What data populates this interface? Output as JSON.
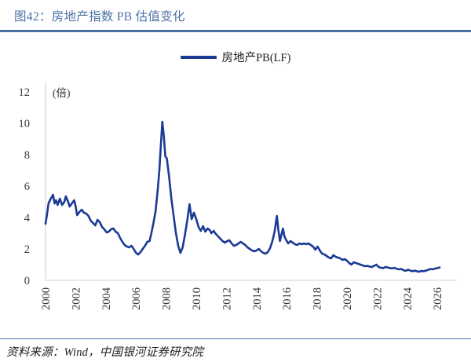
{
  "figure": {
    "title": "图42：房地产指数 PB 估值变化",
    "accent_color": "#4c70a6",
    "rule_color": "#4c70a0"
  },
  "legend": {
    "label": "房地产PB(LF)"
  },
  "footer": {
    "source": "资料来源：Wind，中国银河证券研究院",
    "rule_color": "#4a6da4"
  },
  "chart_data": {
    "type": "line",
    "title": "房地产指数 PB 估值变化",
    "unit_label": "(倍)",
    "xlabel": "",
    "ylabel": "PB (倍)",
    "ylim": [
      0,
      12
    ],
    "yticks": [
      0,
      2,
      4,
      6,
      8,
      10,
      12
    ],
    "xticks": [
      2000,
      2002,
      2004,
      2006,
      2008,
      2010,
      2012,
      2014,
      2016,
      2018,
      2020,
      2022,
      2024,
      2026
    ],
    "x_range": [
      2000,
      2027.3
    ],
    "grid": false,
    "legend_position": "top-center",
    "axis_color": "#d9d9d9",
    "series": [
      {
        "name": "房地产PB(LF)",
        "color": "#1a3a94",
        "points": [
          [
            2000.0,
            3.6
          ],
          [
            2000.1,
            4.2
          ],
          [
            2000.2,
            4.9
          ],
          [
            2000.35,
            5.2
          ],
          [
            2000.5,
            5.45
          ],
          [
            2000.6,
            4.9
          ],
          [
            2000.7,
            5.1
          ],
          [
            2000.8,
            4.8
          ],
          [
            2000.95,
            5.2
          ],
          [
            2001.1,
            4.8
          ],
          [
            2001.25,
            5.0
          ],
          [
            2001.35,
            5.35
          ],
          [
            2001.5,
            5.0
          ],
          [
            2001.6,
            4.7
          ],
          [
            2001.75,
            4.9
          ],
          [
            2001.9,
            5.1
          ],
          [
            2002.0,
            4.7
          ],
          [
            2002.1,
            4.15
          ],
          [
            2002.25,
            4.35
          ],
          [
            2002.4,
            4.5
          ],
          [
            2002.55,
            4.3
          ],
          [
            2002.7,
            4.25
          ],
          [
            2002.85,
            4.1
          ],
          [
            2003.0,
            3.8
          ],
          [
            2003.15,
            3.65
          ],
          [
            2003.3,
            3.5
          ],
          [
            2003.45,
            3.85
          ],
          [
            2003.6,
            3.7
          ],
          [
            2003.75,
            3.4
          ],
          [
            2003.9,
            3.25
          ],
          [
            2004.05,
            3.05
          ],
          [
            2004.2,
            3.1
          ],
          [
            2004.35,
            3.25
          ],
          [
            2004.5,
            3.3
          ],
          [
            2004.65,
            3.1
          ],
          [
            2004.8,
            3.0
          ],
          [
            2004.95,
            2.7
          ],
          [
            2005.1,
            2.45
          ],
          [
            2005.25,
            2.25
          ],
          [
            2005.4,
            2.15
          ],
          [
            2005.55,
            2.1
          ],
          [
            2005.7,
            2.2
          ],
          [
            2005.85,
            2.0
          ],
          [
            2006.0,
            1.75
          ],
          [
            2006.15,
            1.65
          ],
          [
            2006.3,
            1.8
          ],
          [
            2006.45,
            2.0
          ],
          [
            2006.6,
            2.2
          ],
          [
            2006.75,
            2.45
          ],
          [
            2006.9,
            2.5
          ],
          [
            2007.0,
            2.9
          ],
          [
            2007.15,
            3.6
          ],
          [
            2007.3,
            4.4
          ],
          [
            2007.45,
            5.8
          ],
          [
            2007.55,
            7.0
          ],
          [
            2007.65,
            8.6
          ],
          [
            2007.75,
            10.1
          ],
          [
            2007.85,
            9.2
          ],
          [
            2007.95,
            7.9
          ],
          [
            2008.05,
            7.75
          ],
          [
            2008.2,
            6.6
          ],
          [
            2008.35,
            5.2
          ],
          [
            2008.5,
            4.1
          ],
          [
            2008.65,
            3.0
          ],
          [
            2008.8,
            2.2
          ],
          [
            2008.95,
            1.75
          ],
          [
            2009.1,
            2.1
          ],
          [
            2009.25,
            2.9
          ],
          [
            2009.4,
            3.8
          ],
          [
            2009.55,
            4.85
          ],
          [
            2009.7,
            3.9
          ],
          [
            2009.85,
            4.3
          ],
          [
            2010.0,
            3.9
          ],
          [
            2010.15,
            3.4
          ],
          [
            2010.3,
            3.15
          ],
          [
            2010.45,
            3.45
          ],
          [
            2010.6,
            3.1
          ],
          [
            2010.75,
            3.3
          ],
          [
            2010.9,
            3.2
          ],
          [
            2011.0,
            3.0
          ],
          [
            2011.15,
            3.15
          ],
          [
            2011.3,
            2.95
          ],
          [
            2011.45,
            2.8
          ],
          [
            2011.6,
            2.65
          ],
          [
            2011.75,
            2.5
          ],
          [
            2011.9,
            2.4
          ],
          [
            2012.05,
            2.5
          ],
          [
            2012.2,
            2.55
          ],
          [
            2012.35,
            2.35
          ],
          [
            2012.5,
            2.2
          ],
          [
            2012.65,
            2.25
          ],
          [
            2012.8,
            2.35
          ],
          [
            2012.95,
            2.45
          ],
          [
            2013.1,
            2.35
          ],
          [
            2013.25,
            2.25
          ],
          [
            2013.4,
            2.1
          ],
          [
            2013.55,
            2.0
          ],
          [
            2013.7,
            1.9
          ],
          [
            2013.85,
            1.85
          ],
          [
            2014.0,
            1.9
          ],
          [
            2014.15,
            2.0
          ],
          [
            2014.3,
            1.85
          ],
          [
            2014.45,
            1.75
          ],
          [
            2014.6,
            1.7
          ],
          [
            2014.75,
            1.8
          ],
          [
            2014.9,
            2.05
          ],
          [
            2015.05,
            2.5
          ],
          [
            2015.2,
            3.1
          ],
          [
            2015.35,
            4.1
          ],
          [
            2015.45,
            3.2
          ],
          [
            2015.55,
            2.5
          ],
          [
            2015.65,
            2.9
          ],
          [
            2015.75,
            3.3
          ],
          [
            2015.85,
            2.8
          ],
          [
            2015.95,
            2.6
          ],
          [
            2016.1,
            2.35
          ],
          [
            2016.25,
            2.5
          ],
          [
            2016.4,
            2.4
          ],
          [
            2016.55,
            2.3
          ],
          [
            2016.7,
            2.25
          ],
          [
            2016.85,
            2.35
          ],
          [
            2017.0,
            2.3
          ],
          [
            2017.15,
            2.35
          ],
          [
            2017.3,
            2.3
          ],
          [
            2017.45,
            2.35
          ],
          [
            2017.6,
            2.25
          ],
          [
            2017.75,
            2.15
          ],
          [
            2017.9,
            1.95
          ],
          [
            2018.05,
            2.15
          ],
          [
            2018.2,
            1.9
          ],
          [
            2018.35,
            1.7
          ],
          [
            2018.5,
            1.65
          ],
          [
            2018.65,
            1.55
          ],
          [
            2018.8,
            1.45
          ],
          [
            2018.95,
            1.4
          ],
          [
            2019.1,
            1.6
          ],
          [
            2019.25,
            1.5
          ],
          [
            2019.4,
            1.45
          ],
          [
            2019.55,
            1.4
          ],
          [
            2019.7,
            1.3
          ],
          [
            2019.85,
            1.35
          ],
          [
            2020.0,
            1.25
          ],
          [
            2020.15,
            1.1
          ],
          [
            2020.3,
            1.0
          ],
          [
            2020.45,
            1.15
          ],
          [
            2020.6,
            1.1
          ],
          [
            2020.75,
            1.05
          ],
          [
            2020.9,
            1.0
          ],
          [
            2021.05,
            0.95
          ],
          [
            2021.2,
            0.9
          ],
          [
            2021.35,
            0.92
          ],
          [
            2021.5,
            0.88
          ],
          [
            2021.65,
            0.85
          ],
          [
            2021.8,
            0.92
          ],
          [
            2021.95,
            1.0
          ],
          [
            2022.1,
            0.85
          ],
          [
            2022.25,
            0.8
          ],
          [
            2022.4,
            0.78
          ],
          [
            2022.55,
            0.85
          ],
          [
            2022.7,
            0.82
          ],
          [
            2022.85,
            0.78
          ],
          [
            2023.0,
            0.76
          ],
          [
            2023.15,
            0.8
          ],
          [
            2023.3,
            0.73
          ],
          [
            2023.45,
            0.7
          ],
          [
            2023.6,
            0.72
          ],
          [
            2023.75,
            0.65
          ],
          [
            2023.9,
            0.6
          ],
          [
            2024.05,
            0.68
          ],
          [
            2024.2,
            0.62
          ],
          [
            2024.35,
            0.58
          ],
          [
            2024.5,
            0.62
          ],
          [
            2024.65,
            0.57
          ],
          [
            2024.8,
            0.55
          ],
          [
            2024.95,
            0.6
          ],
          [
            2025.1,
            0.58
          ],
          [
            2025.25,
            0.62
          ],
          [
            2025.4,
            0.68
          ],
          [
            2025.55,
            0.72
          ],
          [
            2025.7,
            0.7
          ],
          [
            2025.85,
            0.75
          ],
          [
            2026.0,
            0.78
          ],
          [
            2026.15,
            0.82
          ]
        ]
      }
    ]
  }
}
